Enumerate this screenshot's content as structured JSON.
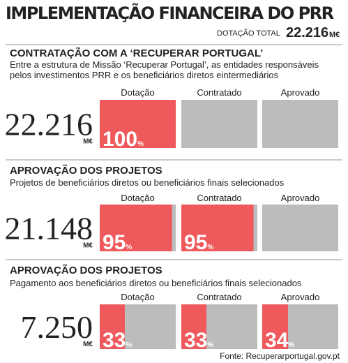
{
  "title": "IMPLEMENTAÇÃO FINANCEIRA DO PRR",
  "total": {
    "label": "DOTAÇÃO TOTAL",
    "amount": "22.216",
    "unit": "M€"
  },
  "percent_sign": "%",
  "sections": [
    {
      "heading": "CONTRATAÇÃO COM A ‘RECUPERAR PORTUGAL’",
      "description_lines": [
        "Entre a estrutura de Missão ‘Recuperar Portugal’, as entidades responsáveis",
        "pelos investimentos PRR e os beneficiários diretos eintermediários"
      ],
      "amount": "22.216",
      "unit": "M€",
      "columns": [
        "Dotação",
        "Contratado",
        "Aprovado"
      ],
      "values": [
        100,
        null,
        null
      ]
    },
    {
      "heading": "APROVAÇÃO DOS PROJETOS",
      "description_lines": [
        "Projetos de beneficiários diretos ou beneficiários finais selecionados"
      ],
      "amount": "21.148",
      "unit": "M€",
      "columns": [
        "Dotação",
        "Contratado",
        "Aprovado"
      ],
      "values": [
        95,
        95,
        null
      ]
    },
    {
      "heading": "APROVAÇÃO DOS PROJETOS",
      "description_lines": [
        "Pagamento aos beneficiários diretos ou beneficiários finais selecionados"
      ],
      "amount": "7.250",
      "unit": "M€",
      "columns": [
        "Dotação",
        "Contratado",
        "Aprovado"
      ],
      "values": [
        33,
        33,
        34
      ]
    }
  ],
  "source": "Fonte: Recuperarportugal.gov.pt"
}
